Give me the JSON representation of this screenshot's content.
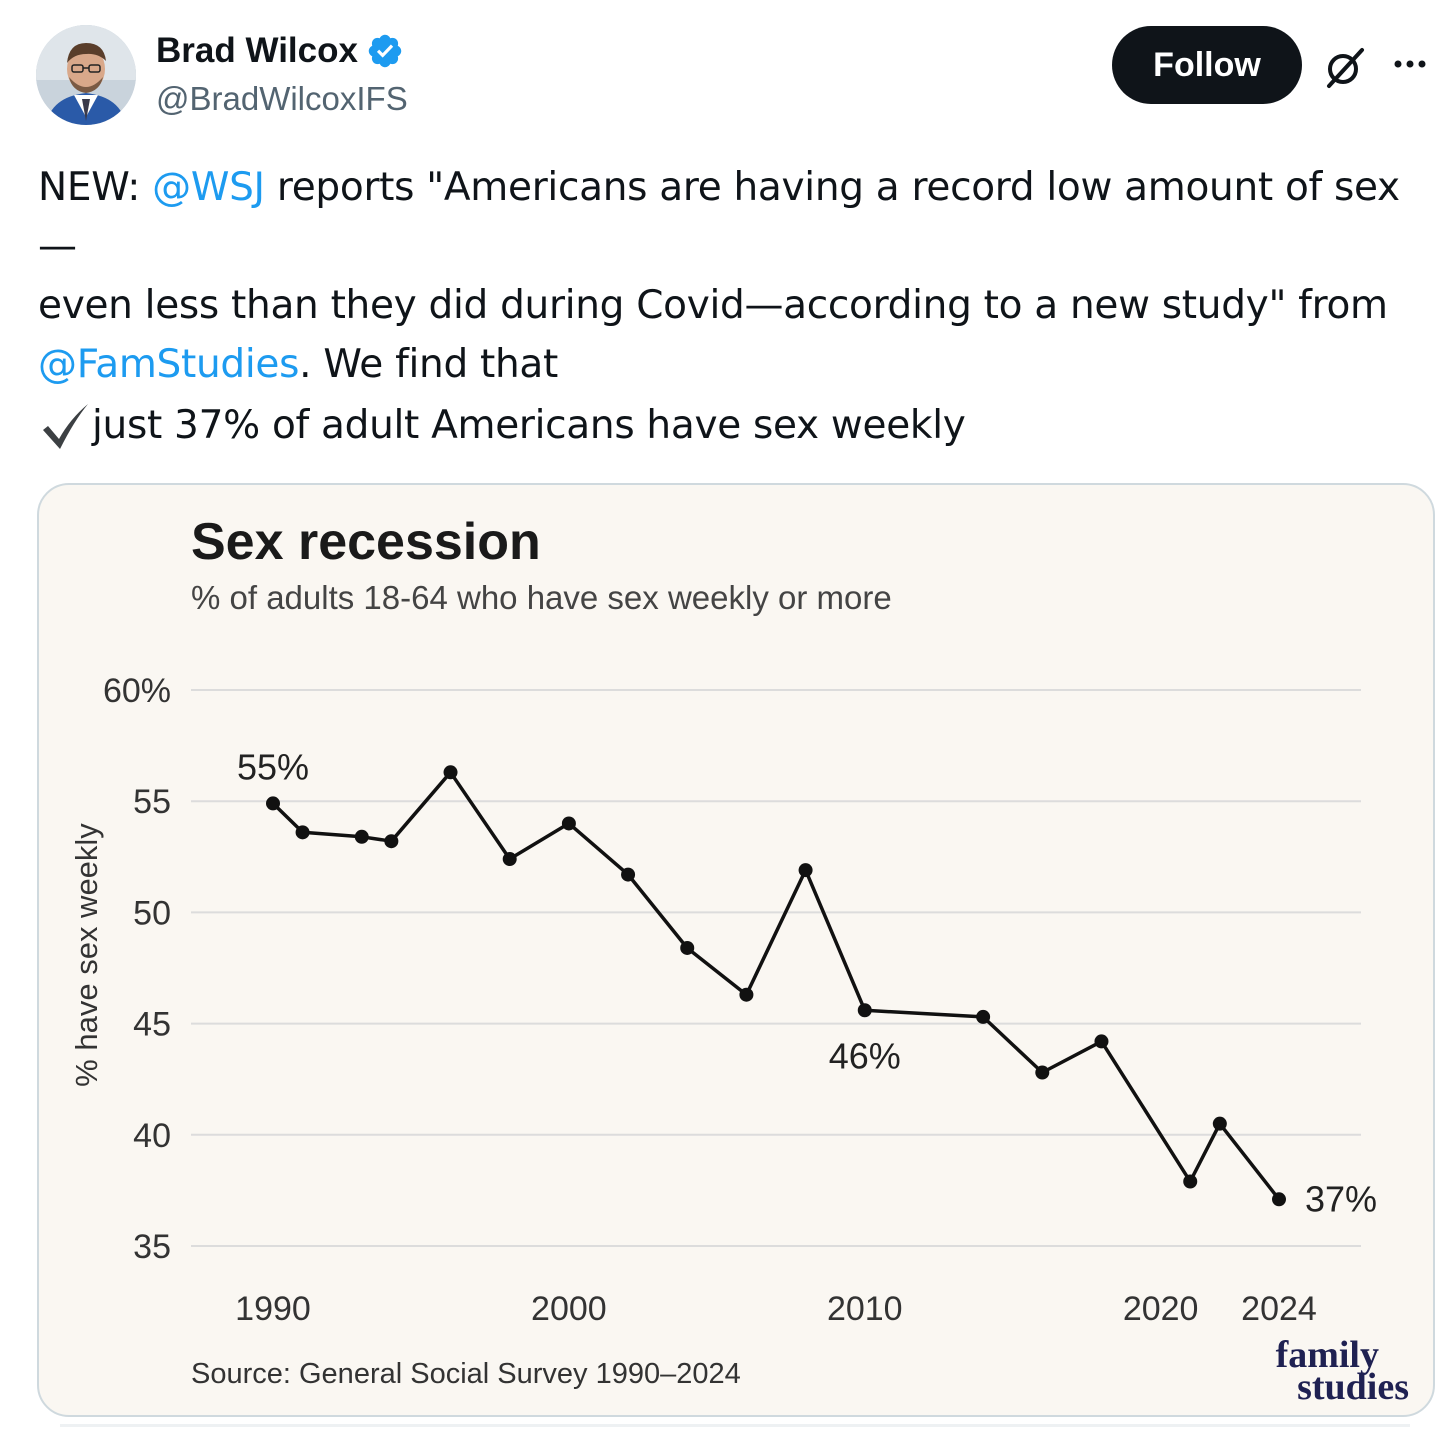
{
  "author": {
    "name": "Brad Wilcox",
    "handle": "@BradWilcoxIFS",
    "verified": true,
    "avatar_icon": "profile-photo"
  },
  "actions": {
    "follow_label": "Follow",
    "grok_icon": "grok-icon",
    "more_icon": "more-options-icon"
  },
  "tweet": {
    "line1_a": "NEW: ",
    "line1_mention": "@WSJ",
    "line1_b": " reports \"Americans are having a record low amount of sex—",
    "line2": "even less than they did during Covid—according to a new study\" from",
    "line3_mention": "@FamStudies",
    "line3_b": ". We find that",
    "check_line": "just 37% of adult Americans have sex weekly",
    "check_icon": "check-mark-icon",
    "mention_color": "#1d9bf0"
  },
  "chart_data": {
    "type": "line",
    "title": "Sex recession",
    "subtitle": "% of adults 18-64 who have sex weekly or more",
    "ylabel": "% have sex weekly",
    "xlabel": "",
    "source": "Source: General Social Survey 1990–2024",
    "brand": [
      "family",
      "studies"
    ],
    "ylim": [
      35,
      60
    ],
    "xlim": [
      1990,
      2024
    ],
    "y_ticks": [
      {
        "value": 60,
        "label": "60%"
      },
      {
        "value": 55,
        "label": "55"
      },
      {
        "value": 50,
        "label": "50"
      },
      {
        "value": 45,
        "label": "45"
      },
      {
        "value": 40,
        "label": "40"
      },
      {
        "value": 35,
        "label": "35"
      }
    ],
    "x_ticks": [
      {
        "value": 1990,
        "label": "1990"
      },
      {
        "value": 2000,
        "label": "2000"
      },
      {
        "value": 2010,
        "label": "2010"
      },
      {
        "value": 2020,
        "label": "2020"
      },
      {
        "value": 2024,
        "label": "2024"
      }
    ],
    "x": [
      1990,
      1991,
      1993,
      1994,
      1996,
      1998,
      2000,
      2002,
      2004,
      2006,
      2008,
      2010,
      2014,
      2016,
      2018,
      2021,
      2022,
      2024
    ],
    "values": [
      54.9,
      53.6,
      53.4,
      53.2,
      56.3,
      52.4,
      54.0,
      51.7,
      48.4,
      46.3,
      51.9,
      45.6,
      45.3,
      42.8,
      44.2,
      37.9,
      40.5,
      37.1
    ],
    "annotations": [
      {
        "x": 1990,
        "label": "55%",
        "position": "above"
      },
      {
        "x": 2010,
        "label": "46%",
        "position": "below"
      },
      {
        "x": 2024,
        "label": "37%",
        "position": "right"
      }
    ],
    "line_color": "#111111",
    "grid": true,
    "background": "#faf7f2",
    "brand_color": "#1f2152"
  }
}
